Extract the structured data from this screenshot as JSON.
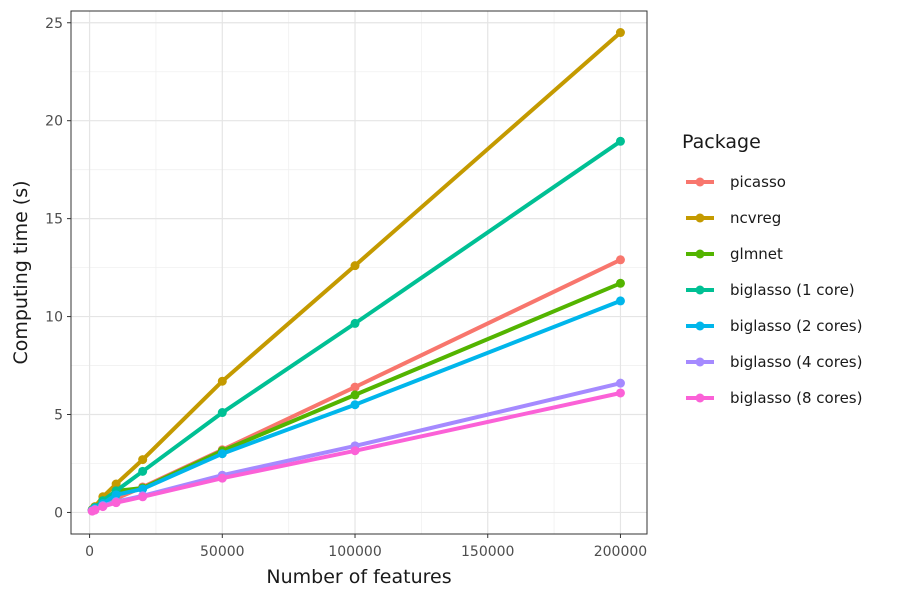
{
  "chart_data": {
    "type": "line",
    "title": "",
    "xlabel": "Number of features",
    "ylabel": "Computing time (s)",
    "xlim": [
      -7000,
      210000
    ],
    "ylim": [
      -1.1,
      25.6
    ],
    "x_ticks": [
      0,
      50000,
      100000,
      150000,
      200000
    ],
    "x_tick_labels": [
      "0",
      "50000",
      "100000",
      "150000",
      "200000"
    ],
    "y_ticks": [
      0,
      5,
      10,
      15,
      20,
      25
    ],
    "y_tick_labels": [
      "0",
      "5",
      "10",
      "15",
      "20",
      "25"
    ],
    "grid": true,
    "legend_title": "Package",
    "legend_position": "right",
    "x": [
      1000,
      2000,
      5000,
      10000,
      20000,
      50000,
      100000,
      200000
    ],
    "series": [
      {
        "name": "picasso",
        "color": "#F8766D",
        "values": [
          0.1,
          0.2,
          0.4,
          0.7,
          1.3,
          3.2,
          6.4,
          12.9
        ]
      },
      {
        "name": "ncvreg",
        "color": "#C49A00",
        "values": [
          0.15,
          0.3,
          0.8,
          1.45,
          2.7,
          6.7,
          12.6,
          24.5
        ]
      },
      {
        "name": "glmnet",
        "color": "#53B400",
        "values": [
          0.1,
          0.2,
          0.6,
          1.1,
          1.25,
          3.15,
          6.0,
          11.7
        ]
      },
      {
        "name": "biglasso (1 core)",
        "color": "#00C094",
        "values": [
          0.12,
          0.25,
          0.6,
          1.1,
          2.1,
          5.1,
          9.65,
          18.95
        ]
      },
      {
        "name": "biglasso (2 cores)",
        "color": "#00B6EB",
        "values": [
          0.1,
          0.2,
          0.45,
          0.9,
          1.2,
          3.0,
          5.5,
          10.8
        ]
      },
      {
        "name": "biglasso (4 cores)",
        "color": "#A58AFF",
        "values": [
          0.08,
          0.15,
          0.35,
          0.55,
          0.85,
          1.9,
          3.4,
          6.6
        ]
      },
      {
        "name": "biglasso (8 cores)",
        "color": "#FB61D7",
        "values": [
          0.07,
          0.12,
          0.3,
          0.5,
          0.8,
          1.75,
          3.15,
          6.1
        ]
      }
    ]
  }
}
